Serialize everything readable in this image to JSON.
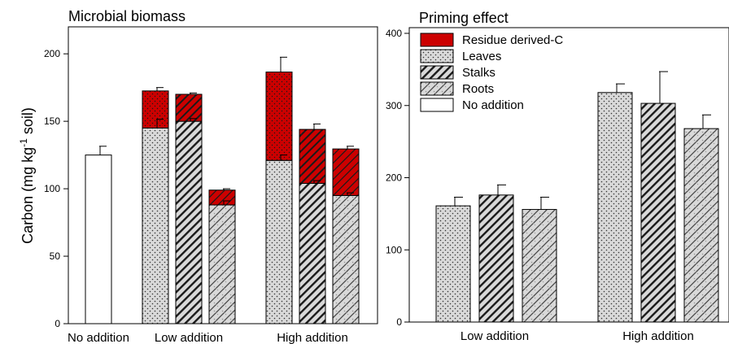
{
  "colors": {
    "residue": "#cc0000",
    "residue_pattern": "#000000",
    "fill": "#d9d9d9",
    "stroke": "#000000",
    "no_addition": "#ffffff"
  },
  "y_axis_label": {
    "main": "Carbon (mg kg",
    "sup": "-1",
    "tail": " soil)"
  },
  "legend": [
    {
      "label": "Residue derived-C",
      "pattern": "red"
    },
    {
      "label": "Leaves",
      "pattern": "dots"
    },
    {
      "label": "Stalks",
      "pattern": "stripes"
    },
    {
      "label": "Roots",
      "pattern": "cross"
    },
    {
      "label": "No addition",
      "pattern": "white"
    }
  ],
  "chart_data": [
    {
      "type": "bar",
      "stacked": true,
      "title": "Microbial biomass",
      "ylabel": "Carbon (mg kg-1 soil)",
      "ylim": [
        0,
        220
      ],
      "yticks": [
        0,
        50,
        100,
        150,
        200
      ],
      "category_labels": [
        "No addition",
        "Low  addition",
        "High addition"
      ],
      "bars": [
        {
          "group": "No addition",
          "residue": "No addition",
          "base": 125,
          "residue_c": 0,
          "base_err": 6.5,
          "total_err": 0
        },
        {
          "group": "Low  addition",
          "residue": "Leaves",
          "base": 145,
          "residue_c": 27.5,
          "base_err": 6.5,
          "total_err": 2.5
        },
        {
          "group": "Low  addition",
          "residue": "Stalks",
          "base": 150,
          "residue_c": 20,
          "base_err": 2,
          "total_err": 1
        },
        {
          "group": "Low  addition",
          "residue": "Roots",
          "base": 88,
          "residue_c": 11,
          "base_err": 3,
          "total_err": 1
        },
        {
          "group": "High addition",
          "residue": "Leaves",
          "base": 121,
          "residue_c": 65.5,
          "base_err": 4,
          "total_err": 11
        },
        {
          "group": "High addition",
          "residue": "Stalks",
          "base": 104,
          "residue_c": 40,
          "base_err": 2,
          "total_err": 4
        },
        {
          "group": "High addition",
          "residue": "Roots",
          "base": 95,
          "residue_c": 34.5,
          "base_err": 2,
          "total_err": 2
        }
      ]
    },
    {
      "type": "bar",
      "title": "Priming effect",
      "ylim": [
        0,
        400
      ],
      "yticks": [
        0,
        100,
        200,
        300,
        400
      ],
      "category_labels": [
        "Low  addition",
        "High addition"
      ],
      "bars": [
        {
          "group": "Low  addition",
          "residue": "Leaves",
          "value": 161,
          "err": 12
        },
        {
          "group": "Low  addition",
          "residue": "Stalks",
          "value": 176,
          "err": 14
        },
        {
          "group": "Low  addition",
          "residue": "Roots",
          "value": 156,
          "err": 17
        },
        {
          "group": "High addition",
          "residue": "Leaves",
          "value": 318,
          "err": 12
        },
        {
          "group": "High addition",
          "residue": "Stalks",
          "value": 303,
          "err": 44
        },
        {
          "group": "High addition",
          "residue": "Roots",
          "value": 268,
          "err": 19
        }
      ]
    }
  ]
}
